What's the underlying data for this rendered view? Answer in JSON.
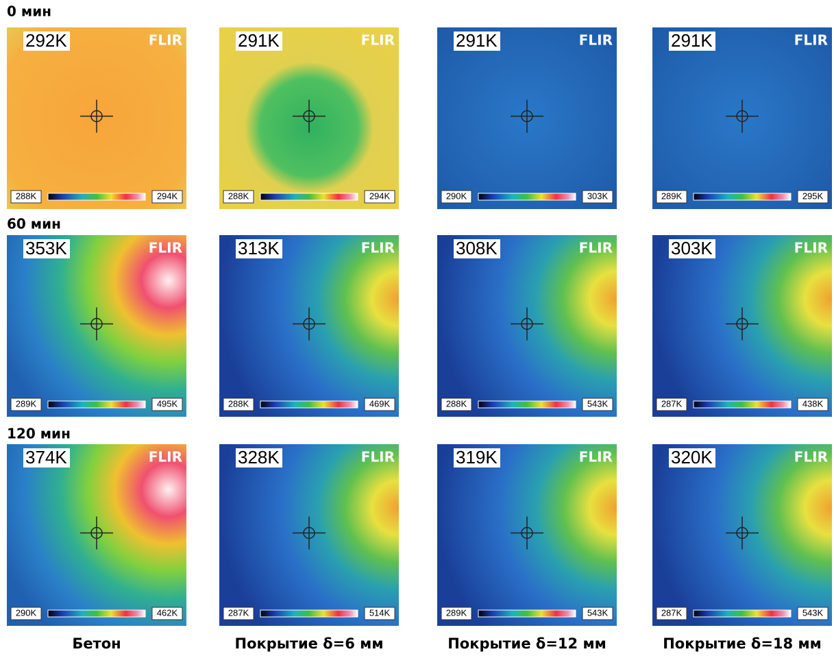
{
  "logo": "FLIR",
  "rows": [
    {
      "label": "0 мин",
      "cells": [
        {
          "spot": "292K",
          "min": "288K",
          "max": "294K"
        },
        {
          "spot": "291K",
          "min": "288K",
          "max": "294K"
        },
        {
          "spot": "291K",
          "min": "290K",
          "max": "303K"
        },
        {
          "spot": "291K",
          "min": "289K",
          "max": "295K"
        }
      ]
    },
    {
      "label": "60 мин",
      "cells": [
        {
          "spot": "353K",
          "min": "289K",
          "max": "495K"
        },
        {
          "spot": "313K",
          "min": "288K",
          "max": "469K"
        },
        {
          "spot": "308K",
          "min": "288K",
          "max": "543K"
        },
        {
          "spot": "303K",
          "min": "287K",
          "max": "438K"
        }
      ]
    },
    {
      "label": "120 мин",
      "cells": [
        {
          "spot": "374K",
          "min": "290K",
          "max": "462K"
        },
        {
          "spot": "328K",
          "min": "287K",
          "max": "514K"
        },
        {
          "spot": "319K",
          "min": "289K",
          "max": "543K"
        },
        {
          "spot": "320K",
          "min": "287K",
          "max": "543K"
        }
      ]
    }
  ],
  "columns": [
    "Бетон",
    "Покрытие δ=6 мм",
    "Покрытие δ=12 мм",
    "Покрытие δ=18 мм"
  ]
}
